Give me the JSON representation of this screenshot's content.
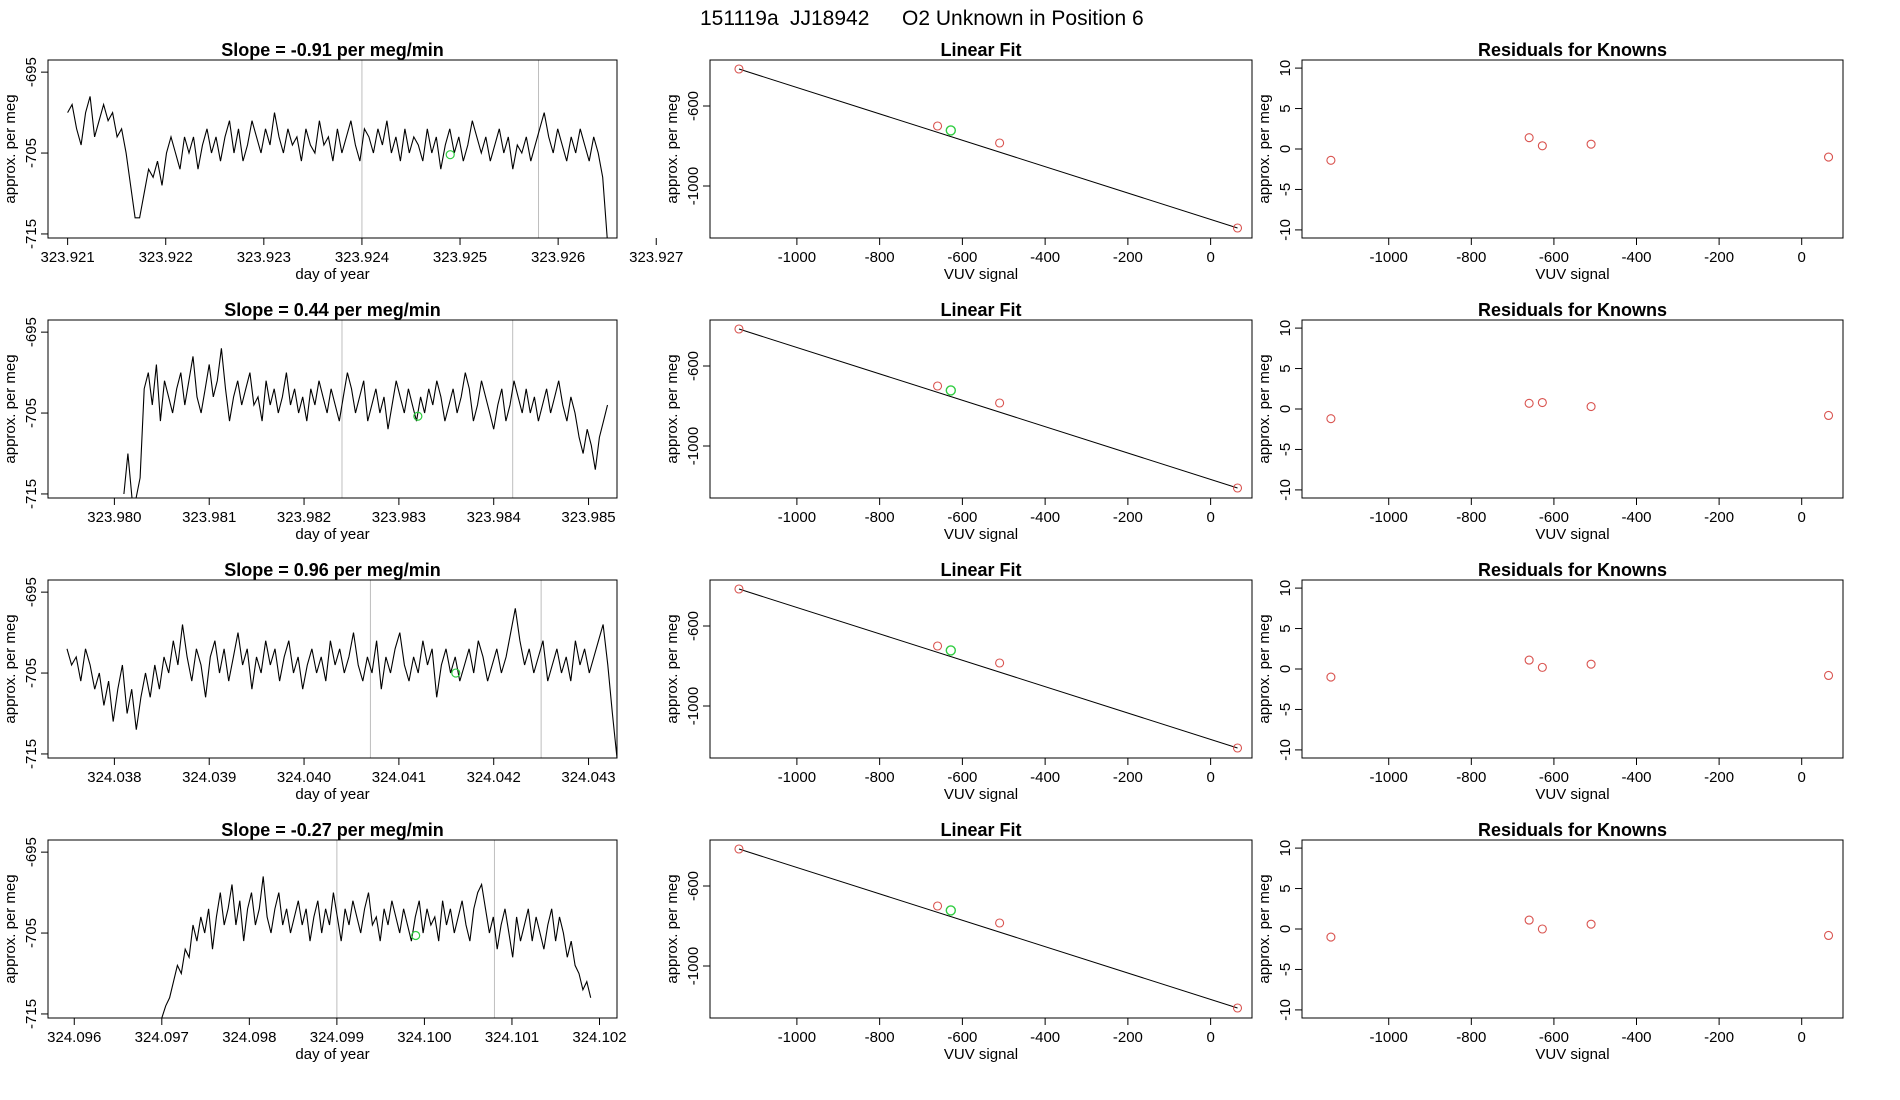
{
  "figure": {
    "title_parts": [
      "151119a",
      "JJ18942",
      "O2 Unknown in Position  6"
    ],
    "line_color": "#000000",
    "vline_color": "#bebebe",
    "known_color": "#d9534f",
    "unknown_color": "#2ecc40"
  },
  "chart_data": [
    {
      "type": "line",
      "panel": "time-series",
      "row": 1,
      "title": "Slope =  -0.91  per meg/min",
      "xlabel": "day of year",
      "ylabel": "approx. per meg",
      "xlim": [
        323.9208,
        323.9266
      ],
      "ylim": [
        -715.5,
        -693.5
      ],
      "xticks": [
        323.921,
        323.922,
        323.923,
        323.924,
        323.925,
        323.926,
        323.927
      ],
      "xtick_labels": [
        "323.921",
        "323.922",
        "323.923",
        "323.924",
        "323.925",
        "323.926",
        "323.927"
      ],
      "yticks": [
        -695,
        -705,
        -715
      ],
      "ytick_labels": [
        "-695",
        "-705",
        "-715"
      ],
      "vlines": [
        323.924,
        323.9258
      ],
      "series_start": 323.921,
      "series_end": 323.9265,
      "series_values": [
        -700,
        -699,
        -702,
        -704,
        -700,
        -698,
        -703,
        -701,
        -699,
        -701,
        -700,
        -703,
        -702,
        -705,
        -709,
        -713,
        -713,
        -710,
        -707,
        -708,
        -706,
        -709,
        -705,
        -703,
        -705,
        -707,
        -703,
        -705,
        -703,
        -707,
        -704,
        -702,
        -705,
        -703,
        -706,
        -703,
        -701,
        -705,
        -702,
        -706,
        -704,
        -701,
        -703,
        -705,
        -702,
        -704,
        -700,
        -703,
        -705,
        -702,
        -704,
        -703,
        -706,
        -702,
        -704,
        -705,
        -701,
        -704,
        -703,
        -706,
        -702,
        -705,
        -703,
        -701,
        -704,
        -706,
        -702,
        -703,
        -705,
        -702,
        -704,
        -701,
        -705,
        -703,
        -706,
        -702,
        -705,
        -703,
        -704,
        -706,
        -702,
        -705,
        -703,
        -707,
        -704,
        -702,
        -705,
        -703,
        -706,
        -704,
        -701,
        -703,
        -705,
        -703,
        -706,
        -704,
        -702,
        -705,
        -703,
        -707,
        -704,
        -705,
        -703,
        -706,
        -704,
        -702,
        -700,
        -703,
        -705,
        -702,
        -704,
        -706,
        -703,
        -705,
        -702,
        -704,
        -706,
        -703,
        -705,
        -708,
        -716
      ],
      "unknown_point": [
        323.9249,
        -705.2
      ]
    },
    {
      "type": "scatter",
      "panel": "linear-fit",
      "row": 1,
      "title": "Linear Fit",
      "xlabel": "VUV signal",
      "ylabel": "approx. per meg",
      "xlim": [
        -1210,
        100
      ],
      "ylim": [
        -1260,
        -370
      ],
      "xticks": [
        -1000,
        -800,
        -600,
        -400,
        -200,
        0
      ],
      "xtick_labels": [
        "-1000",
        "-800",
        "-600",
        "-400",
        "-200",
        "0"
      ],
      "yticks": [
        -600,
        -1000
      ],
      "ytick_labels": [
        "-600",
        "-1000"
      ],
      "knowns": [
        [
          -1140,
          -415
        ],
        [
          -660,
          -700
        ],
        [
          -510,
          -785
        ],
        [
          65,
          -1210
        ]
      ],
      "unknown": [
        -628,
        -722
      ],
      "fit_line": [
        [
          -1140,
          -415
        ],
        [
          65,
          -1210
        ]
      ]
    },
    {
      "type": "scatter",
      "panel": "residuals",
      "row": 1,
      "title": "Residuals for Knowns",
      "xlabel": "VUV signal",
      "ylabel": "approx. per meg",
      "xlim": [
        -1210,
        100
      ],
      "ylim": [
        -11,
        11
      ],
      "xticks": [
        -1000,
        -800,
        -600,
        -400,
        -200,
        0
      ],
      "xtick_labels": [
        "-1000",
        "-800",
        "-600",
        "-400",
        "-200",
        "0"
      ],
      "yticks": [
        10,
        5,
        0,
        -5,
        -10
      ],
      "ytick_labels": [
        "10",
        "5",
        "0",
        "-5",
        "-10"
      ],
      "points": [
        [
          -1140,
          -1.4
        ],
        [
          -660,
          1.4
        ],
        [
          -628,
          0.4
        ],
        [
          -510,
          0.6
        ],
        [
          65,
          -1.0
        ]
      ]
    },
    {
      "type": "line",
      "panel": "time-series",
      "row": 2,
      "title": "Slope =  0.44  per meg/min",
      "xlabel": "day of year",
      "ylabel": "approx. per meg",
      "xlim": [
        323.9793,
        323.9853
      ],
      "ylim": [
        -715.5,
        -693.5
      ],
      "xticks": [
        323.98,
        323.981,
        323.982,
        323.983,
        323.984,
        323.985
      ],
      "xtick_labels": [
        "323.980",
        "323.981",
        "323.982",
        "323.983",
        "323.984",
        "323.985"
      ],
      "yticks": [
        -695,
        -705,
        -715
      ],
      "ytick_labels": [
        "-695",
        "-705",
        "-715"
      ],
      "vlines": [
        323.9824,
        323.9842
      ],
      "series_start": 323.9801,
      "series_end": 323.9852,
      "series_values": [
        -715,
        -710,
        -718,
        -716,
        -713,
        -702,
        -700,
        -704,
        -699,
        -706,
        -701,
        -703,
        -705,
        -702,
        -700,
        -704,
        -701,
        -698,
        -703,
        -705,
        -702,
        -699,
        -703,
        -701,
        -697,
        -702,
        -706,
        -703,
        -701,
        -704,
        -702,
        -700,
        -704,
        -703,
        -706,
        -701,
        -704,
        -702,
        -705,
        -703,
        -700,
        -704,
        -702,
        -705,
        -703,
        -706,
        -702,
        -704,
        -701,
        -703,
        -705,
        -702,
        -704,
        -706,
        -703,
        -700,
        -702,
        -705,
        -703,
        -701,
        -706,
        -704,
        -702,
        -705,
        -703,
        -707,
        -704,
        -701,
        -703,
        -705,
        -702,
        -704,
        -706,
        -703,
        -705,
        -702,
        -704,
        -701,
        -703,
        -706,
        -704,
        -702,
        -705,
        -703,
        -700,
        -702,
        -706,
        -704,
        -701,
        -703,
        -705,
        -707,
        -704,
        -702,
        -706,
        -704,
        -701,
        -703,
        -705,
        -702,
        -705,
        -703,
        -706,
        -704,
        -702,
        -705,
        -703,
        -701,
        -704,
        -706,
        -703,
        -705,
        -708,
        -710,
        -707,
        -709,
        -712,
        -708,
        -706,
        -704
      ],
      "unknown_point": [
        323.9832,
        -705.4
      ]
    },
    {
      "type": "scatter",
      "panel": "linear-fit",
      "row": 2,
      "title": "Linear Fit",
      "xlabel": "VUV signal",
      "ylabel": "approx. per meg",
      "xlim": [
        -1210,
        100
      ],
      "ylim": [
        -1260,
        -370
      ],
      "xticks": [
        -1000,
        -800,
        -600,
        -400,
        -200,
        0
      ],
      "xtick_labels": [
        "-1000",
        "-800",
        "-600",
        "-400",
        "-200",
        "0"
      ],
      "yticks": [
        -600,
        -1000
      ],
      "ytick_labels": [
        "-600",
        "-1000"
      ],
      "knowns": [
        [
          -1140,
          -415
        ],
        [
          -660,
          -700
        ],
        [
          -510,
          -785
        ],
        [
          65,
          -1210
        ]
      ],
      "unknown": [
        -628,
        -722
      ],
      "fit_line": [
        [
          -1140,
          -415
        ],
        [
          65,
          -1210
        ]
      ]
    },
    {
      "type": "scatter",
      "panel": "residuals",
      "row": 2,
      "title": "Residuals for Knowns",
      "xlabel": "VUV signal",
      "ylabel": "approx. per meg",
      "xlim": [
        -1210,
        100
      ],
      "ylim": [
        -11,
        11
      ],
      "xticks": [
        -1000,
        -800,
        -600,
        -400,
        -200,
        0
      ],
      "xtick_labels": [
        "-1000",
        "-800",
        "-600",
        "-400",
        "-200",
        "0"
      ],
      "yticks": [
        10,
        5,
        0,
        -5,
        -10
      ],
      "ytick_labels": [
        "10",
        "5",
        "0",
        "-5",
        "-10"
      ],
      "points": [
        [
          -1140,
          -1.2
        ],
        [
          -660,
          0.7
        ],
        [
          -628,
          0.8
        ],
        [
          -510,
          0.3
        ],
        [
          65,
          -0.8
        ]
      ]
    },
    {
      "type": "line",
      "panel": "time-series",
      "row": 3,
      "title": "Slope =  0.96  per meg/min",
      "xlabel": "day of year",
      "ylabel": "approx. per meg",
      "xlim": [
        324.0373,
        324.0433
      ],
      "ylim": [
        -715.5,
        -693.5
      ],
      "xticks": [
        324.038,
        324.039,
        324.04,
        324.041,
        324.042,
        324.043
      ],
      "xtick_labels": [
        "324.038",
        "324.039",
        "324.040",
        "324.041",
        "324.042",
        "324.043"
      ],
      "yticks": [
        -695,
        -705,
        -715
      ],
      "ytick_labels": [
        "-695",
        "-705",
        "-715"
      ],
      "vlines": [
        324.0407,
        324.0425
      ],
      "series_start": 324.0375,
      "series_end": 324.0433,
      "series_values": [
        -702,
        -704,
        -703,
        -706,
        -702,
        -704,
        -707,
        -705,
        -709,
        -706,
        -711,
        -707,
        -704,
        -710,
        -707,
        -712,
        -708,
        -705,
        -708,
        -704,
        -707,
        -703,
        -705,
        -701,
        -704,
        -699,
        -703,
        -706,
        -702,
        -704,
        -708,
        -703,
        -701,
        -705,
        -702,
        -706,
        -703,
        -700,
        -704,
        -702,
        -707,
        -703,
        -705,
        -701,
        -704,
        -702,
        -706,
        -703,
        -701,
        -705,
        -703,
        -707,
        -704,
        -702,
        -705,
        -703,
        -706,
        -701,
        -704,
        -702,
        -705,
        -703,
        -700,
        -704,
        -706,
        -703,
        -705,
        -701,
        -707,
        -703,
        -705,
        -702,
        -700,
        -704,
        -706,
        -703,
        -705,
        -701,
        -704,
        -702,
        -708,
        -704,
        -702,
        -705,
        -703,
        -706,
        -704,
        -702,
        -705,
        -701,
        -703,
        -706,
        -704,
        -702,
        -705,
        -703,
        -700,
        -697,
        -701,
        -704,
        -702,
        -705,
        -703,
        -701,
        -706,
        -704,
        -702,
        -705,
        -703,
        -706,
        -701,
        -704,
        -702,
        -705,
        -703,
        -701,
        -699,
        -704,
        -710,
        -716
      ],
      "unknown_point": [
        324.0416,
        -705.0
      ]
    },
    {
      "type": "scatter",
      "panel": "linear-fit",
      "row": 3,
      "title": "Linear Fit",
      "xlabel": "VUV signal",
      "ylabel": "approx. per meg",
      "xlim": [
        -1210,
        100
      ],
      "ylim": [
        -1260,
        -370
      ],
      "xticks": [
        -1000,
        -800,
        -600,
        -400,
        -200,
        0
      ],
      "xtick_labels": [
        "-1000",
        "-800",
        "-600",
        "-400",
        "-200",
        "0"
      ],
      "yticks": [
        -600,
        -1000
      ],
      "ytick_labels": [
        "-600",
        "-1000"
      ],
      "knowns": [
        [
          -1140,
          -415
        ],
        [
          -660,
          -700
        ],
        [
          -510,
          -785
        ],
        [
          65,
          -1210
        ]
      ],
      "unknown": [
        -628,
        -722
      ],
      "fit_line": [
        [
          -1140,
          -415
        ],
        [
          65,
          -1210
        ]
      ]
    },
    {
      "type": "scatter",
      "panel": "residuals",
      "row": 3,
      "title": "Residuals for Knowns",
      "xlabel": "VUV signal",
      "ylabel": "approx. per meg",
      "xlim": [
        -1210,
        100
      ],
      "ylim": [
        -11,
        11
      ],
      "xticks": [
        -1000,
        -800,
        -600,
        -400,
        -200,
        0
      ],
      "xtick_labels": [
        "-1000",
        "-800",
        "-600",
        "-400",
        "-200",
        "0"
      ],
      "yticks": [
        10,
        5,
        0,
        -5,
        -10
      ],
      "ytick_labels": [
        "10",
        "5",
        "0",
        "-5",
        "-10"
      ],
      "points": [
        [
          -1140,
          -1.0
        ],
        [
          -660,
          1.1
        ],
        [
          -628,
          0.2
        ],
        [
          -510,
          0.6
        ],
        [
          65,
          -0.8
        ]
      ]
    },
    {
      "type": "line",
      "panel": "time-series",
      "row": 4,
      "title": "Slope =  -0.27  per meg/min",
      "xlabel": "day of year",
      "ylabel": "approx. per meg",
      "xlim": [
        324.0957,
        324.1022
      ],
      "ylim": [
        -715.5,
        -693.5
      ],
      "xticks": [
        324.096,
        324.097,
        324.098,
        324.099,
        324.1,
        324.101,
        324.102
      ],
      "xtick_labels": [
        "324.096",
        "324.097",
        "324.098",
        "324.099",
        "324.100",
        "324.101",
        "324.102"
      ],
      "yticks": [
        -695,
        -705,
        -715
      ],
      "ytick_labels": [
        "-695",
        "-705",
        "-715"
      ],
      "vlines": [
        324.099,
        324.1008
      ],
      "series_start": 324.097,
      "series_end": 324.1019,
      "series_values": [
        -716,
        -714,
        -713,
        -711,
        -709,
        -710,
        -707,
        -708,
        -704,
        -706,
        -703,
        -705,
        -702,
        -707,
        -703,
        -700,
        -704,
        -702,
        -699,
        -704,
        -701,
        -706,
        -702,
        -700,
        -704,
        -702,
        -698,
        -703,
        -705,
        -702,
        -700,
        -704,
        -702,
        -705,
        -703,
        -701,
        -704,
        -702,
        -706,
        -703,
        -701,
        -705,
        -702,
        -704,
        -700,
        -703,
        -706,
        -702,
        -704,
        -701,
        -703,
        -705,
        -702,
        -700,
        -704,
        -703,
        -706,
        -702,
        -704,
        -701,
        -703,
        -705,
        -702,
        -704,
        -706,
        -703,
        -701,
        -705,
        -702,
        -704,
        -703,
        -706,
        -701,
        -704,
        -702,
        -705,
        -703,
        -701,
        -704,
        -706,
        -702,
        -700,
        -699,
        -702,
        -705,
        -703,
        -707,
        -704,
        -702,
        -705,
        -708,
        -703,
        -706,
        -704,
        -702,
        -706,
        -703,
        -705,
        -707,
        -704,
        -702,
        -706,
        -703,
        -705,
        -708,
        -706,
        -709,
        -710,
        -712,
        -711,
        -713
      ],
      "unknown_point": [
        324.0999,
        -705.3
      ]
    },
    {
      "type": "scatter",
      "panel": "linear-fit",
      "row": 4,
      "title": "Linear Fit",
      "xlabel": "VUV signal",
      "ylabel": "approx. per meg",
      "xlim": [
        -1210,
        100
      ],
      "ylim": [
        -1260,
        -370
      ],
      "xticks": [
        -1000,
        -800,
        -600,
        -400,
        -200,
        0
      ],
      "xtick_labels": [
        "-1000",
        "-800",
        "-600",
        "-400",
        "-200",
        "0"
      ],
      "yticks": [
        -600,
        -1000
      ],
      "ytick_labels": [
        "-600",
        "-1000"
      ],
      "knowns": [
        [
          -1140,
          -415
        ],
        [
          -660,
          -700
        ],
        [
          -510,
          -785
        ],
        [
          65,
          -1210
        ]
      ],
      "unknown": [
        -628,
        -722
      ],
      "fit_line": [
        [
          -1140,
          -415
        ],
        [
          65,
          -1210
        ]
      ]
    },
    {
      "type": "scatter",
      "panel": "residuals",
      "row": 4,
      "title": "Residuals for Knowns",
      "xlabel": "VUV signal",
      "ylabel": "approx. per meg",
      "xlim": [
        -1210,
        100
      ],
      "ylim": [
        -11,
        11
      ],
      "xticks": [
        -1000,
        -800,
        -600,
        -400,
        -200,
        0
      ],
      "xtick_labels": [
        "-1000",
        "-800",
        "-600",
        "-400",
        "-200",
        "0"
      ],
      "yticks": [
        10,
        5,
        0,
        -5,
        -10
      ],
      "ytick_labels": [
        "10",
        "5",
        "0",
        "-5",
        "-10"
      ],
      "points": [
        [
          -1140,
          -1.0
        ],
        [
          -660,
          1.1
        ],
        [
          -628,
          0.0
        ],
        [
          -510,
          0.6
        ],
        [
          65,
          -0.8
        ]
      ]
    }
  ]
}
